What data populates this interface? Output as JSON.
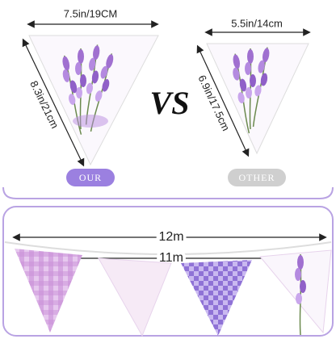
{
  "left": {
    "width_label": "7.5in/19CM",
    "height_label": "8.3in/21cm",
    "badge": "OUR"
  },
  "vs": "VS",
  "right": {
    "width_label": "5.5in/14cm",
    "height_label": "6.9in/17.5cm",
    "badge": "OTHER"
  },
  "bottom": {
    "length_outer": "12m",
    "length_inner": "11m"
  }
}
